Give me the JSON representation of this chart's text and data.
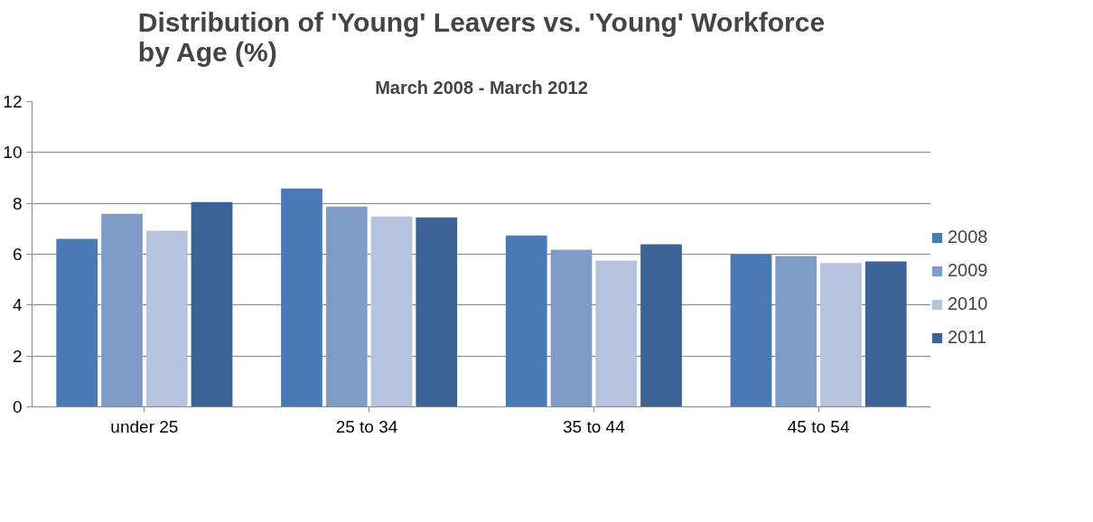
{
  "chart_data": {
    "type": "bar",
    "title": "Distribution of 'Young' Leavers vs. 'Young' Workforce by Age (%)",
    "subtitle": "March 2008 - March 2012",
    "categories": [
      "under 25",
      "25  to 34",
      "35 to 44",
      "45 to 54"
    ],
    "series": [
      {
        "name": "2008",
        "color": "#4a7ab5",
        "values": [
          6.6,
          8.58,
          6.74,
          6.0
        ]
      },
      {
        "name": "2009",
        "color": "#7f9cc9",
        "values": [
          7.59,
          7.87,
          6.18,
          5.93
        ]
      },
      {
        "name": "2010",
        "color": "#b5c3de",
        "values": [
          6.92,
          7.48,
          5.75,
          5.65
        ]
      },
      {
        "name": "2011",
        "color": "#3b6396",
        "values": [
          8.05,
          7.45,
          6.39,
          5.72
        ]
      }
    ],
    "ylim": [
      0,
      12
    ],
    "yticks": [
      0,
      2,
      4,
      6,
      8,
      10,
      12
    ],
    "grid": "y",
    "legend": "right"
  }
}
